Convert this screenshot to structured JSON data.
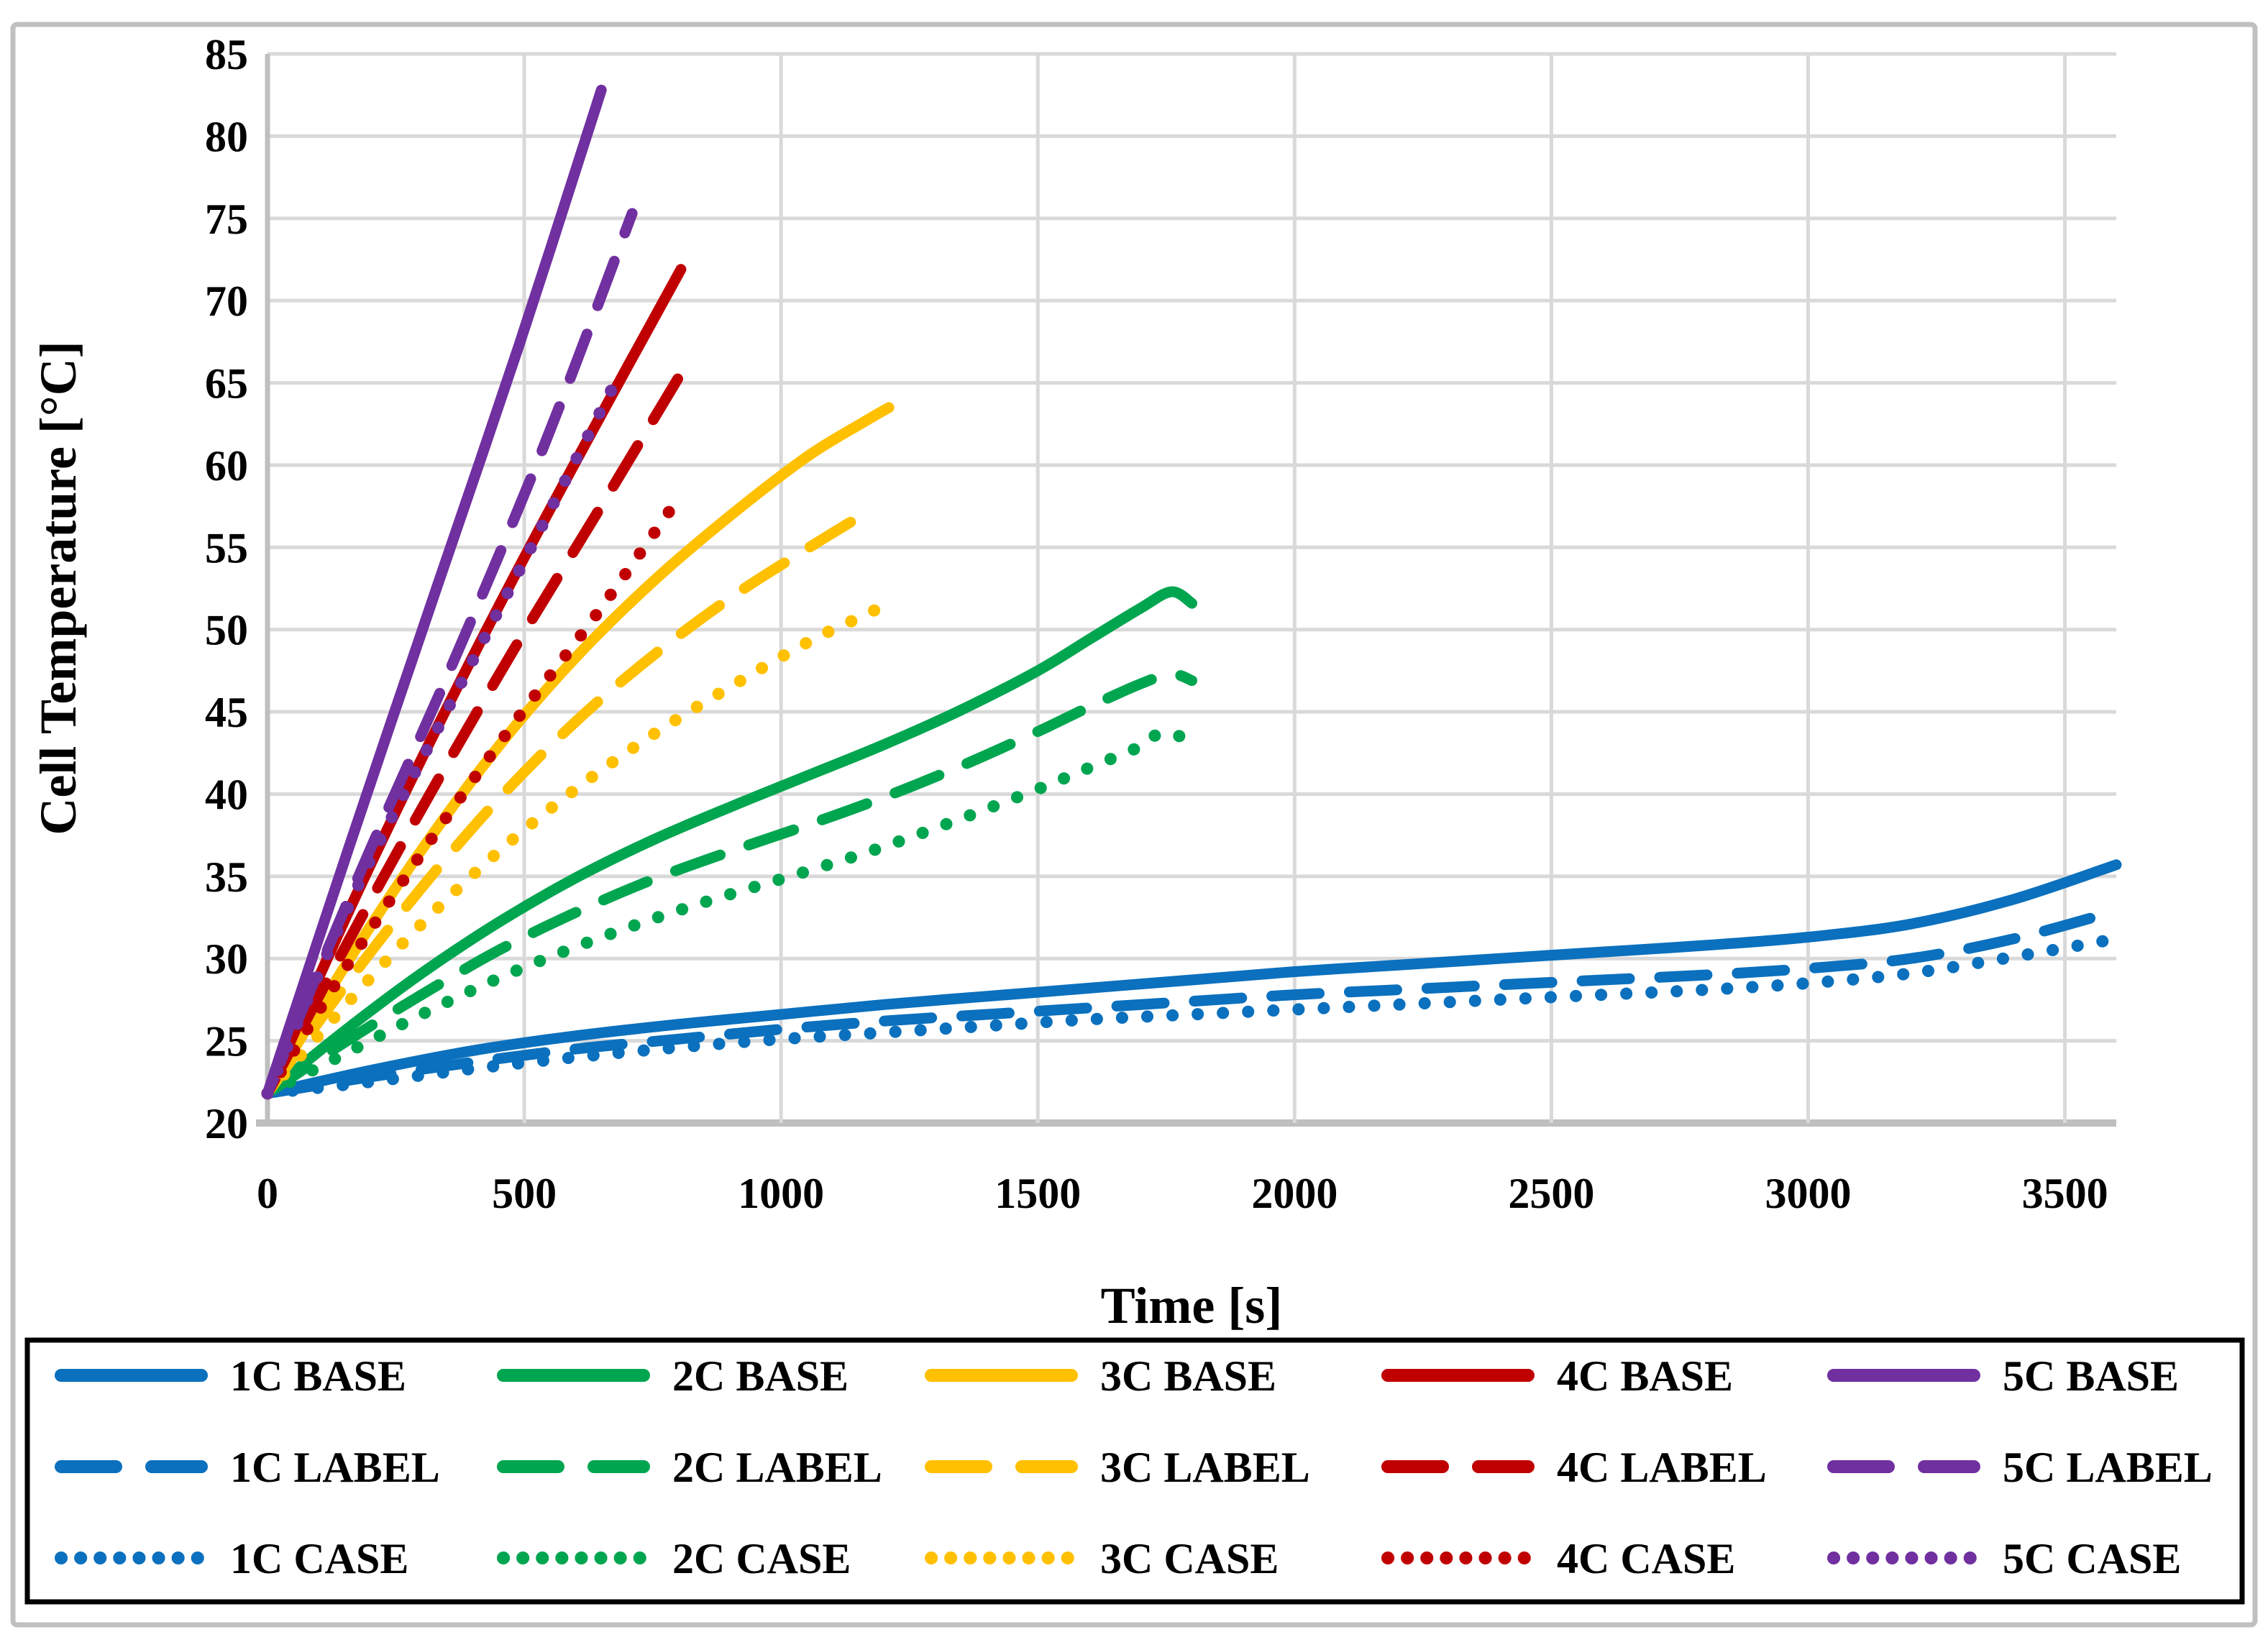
{
  "figure": {
    "background": "#FFFFFF",
    "border_color": "#C0C0C0",
    "legend_border_color": "#000000"
  },
  "chart_data": {
    "type": "line",
    "title": "",
    "xlabel": "Time [s]",
    "ylabel": "Cell Temperature [°C]",
    "xlim": [
      0,
      3600
    ],
    "ylim": [
      20,
      85
    ],
    "x_ticks": [
      0,
      500,
      1000,
      1500,
      2000,
      2500,
      3000,
      3500
    ],
    "y_ticks": [
      20,
      25,
      30,
      35,
      40,
      45,
      50,
      55,
      60,
      65,
      70,
      75,
      80,
      85
    ],
    "grid": true,
    "grid_color": "#D9D9D9",
    "axis_color": "#BFBFBF",
    "legend_position": "bottom",
    "colors": {
      "blue": "#0B70BD",
      "green": "#00A550",
      "yellow": "#FFC000",
      "red": "#C00000",
      "purple": "#7030A0"
    },
    "series": [
      {
        "name": "1C BASE",
        "color": "blue",
        "style": "solid",
        "points": [
          [
            0,
            21.8
          ],
          [
            200,
            23.2
          ],
          [
            400,
            24.4
          ],
          [
            600,
            25.3
          ],
          [
            800,
            26.0
          ],
          [
            1000,
            26.6
          ],
          [
            1200,
            27.2
          ],
          [
            1400,
            27.7
          ],
          [
            1600,
            28.2
          ],
          [
            1800,
            28.7
          ],
          [
            2000,
            29.2
          ],
          [
            2200,
            29.6
          ],
          [
            2400,
            30.0
          ],
          [
            2600,
            30.4
          ],
          [
            2800,
            30.8
          ],
          [
            3000,
            31.3
          ],
          [
            3200,
            32.1
          ],
          [
            3400,
            33.6
          ],
          [
            3600,
            35.7
          ]
        ]
      },
      {
        "name": "2C BASE",
        "color": "green",
        "style": "solid",
        "points": [
          [
            0,
            21.8
          ],
          [
            150,
            25.6
          ],
          [
            300,
            29.1
          ],
          [
            450,
            32.2
          ],
          [
            600,
            34.9
          ],
          [
            750,
            37.2
          ],
          [
            900,
            39.2
          ],
          [
            1050,
            41.1
          ],
          [
            1200,
            43.0
          ],
          [
            1350,
            45.1
          ],
          [
            1500,
            47.5
          ],
          [
            1600,
            49.4
          ],
          [
            1700,
            51.3
          ],
          [
            1760,
            52.3
          ],
          [
            1800,
            51.6
          ]
        ]
      },
      {
        "name": "3C BASE",
        "color": "yellow",
        "style": "solid",
        "points": [
          [
            0,
            21.8
          ],
          [
            150,
            29.5
          ],
          [
            300,
            36.6
          ],
          [
            450,
            42.9
          ],
          [
            600,
            48.3
          ],
          [
            750,
            52.9
          ],
          [
            900,
            56.9
          ],
          [
            1050,
            60.5
          ],
          [
            1160,
            62.6
          ],
          [
            1210,
            63.5
          ]
        ]
      },
      {
        "name": "4C BASE",
        "color": "red",
        "style": "solid",
        "points": [
          [
            0,
            21.8
          ],
          [
            160,
            33.0
          ],
          [
            320,
            43.4
          ],
          [
            480,
            53.2
          ],
          [
            640,
            62.5
          ],
          [
            805,
            71.9
          ]
        ]
      },
      {
        "name": "5C BASE",
        "color": "purple",
        "style": "solid",
        "points": [
          [
            0,
            21.8
          ],
          [
            160,
            36.9
          ],
          [
            330,
            52.6
          ],
          [
            490,
            67.3
          ],
          [
            650,
            82.8
          ]
        ]
      },
      {
        "name": "1C LABEL",
        "color": "blue",
        "style": "dashed",
        "points": [
          [
            0,
            21.8
          ],
          [
            200,
            22.8
          ],
          [
            400,
            23.7
          ],
          [
            600,
            24.5
          ],
          [
            800,
            25.1
          ],
          [
            1000,
            25.7
          ],
          [
            1200,
            26.2
          ],
          [
            1400,
            26.6
          ],
          [
            1600,
            27.0
          ],
          [
            1800,
            27.4
          ],
          [
            2000,
            27.8
          ],
          [
            2200,
            28.1
          ],
          [
            2400,
            28.4
          ],
          [
            2600,
            28.7
          ],
          [
            2800,
            29.0
          ],
          [
            3000,
            29.4
          ],
          [
            3200,
            30.0
          ],
          [
            3400,
            31.2
          ],
          [
            3600,
            32.9
          ]
        ]
      },
      {
        "name": "2C LABEL",
        "color": "green",
        "style": "dashed",
        "points": [
          [
            0,
            21.8
          ],
          [
            150,
            24.9
          ],
          [
            300,
            27.8
          ],
          [
            450,
            30.5
          ],
          [
            600,
            32.8
          ],
          [
            750,
            34.8
          ],
          [
            900,
            36.5
          ],
          [
            1050,
            38.1
          ],
          [
            1200,
            39.8
          ],
          [
            1350,
            41.7
          ],
          [
            1500,
            43.8
          ],
          [
            1600,
            45.3
          ],
          [
            1700,
            46.7
          ],
          [
            1760,
            47.3
          ],
          [
            1800,
            46.9
          ]
        ]
      },
      {
        "name": "3C LABEL",
        "color": "yellow",
        "style": "dashed",
        "points": [
          [
            0,
            21.8
          ],
          [
            150,
            28.3
          ],
          [
            300,
            34.3
          ],
          [
            450,
            39.7
          ],
          [
            600,
            44.4
          ],
          [
            750,
            48.4
          ],
          [
            900,
            51.9
          ],
          [
            1050,
            54.9
          ],
          [
            1160,
            57.0
          ]
        ]
      },
      {
        "name": "4C LABEL",
        "color": "red",
        "style": "dashed",
        "points": [
          [
            0,
            21.8
          ],
          [
            160,
            31.2
          ],
          [
            320,
            40.2
          ],
          [
            480,
            48.8
          ],
          [
            640,
            57.0
          ],
          [
            800,
            65.3
          ]
        ]
      },
      {
        "name": "5C LABEL",
        "color": "purple",
        "style": "dashed",
        "points": [
          [
            0,
            21.8
          ],
          [
            180,
            35.2
          ],
          [
            360,
            47.9
          ],
          [
            540,
            61.3
          ],
          [
            710,
            75.3
          ]
        ]
      },
      {
        "name": "1C CASE",
        "color": "blue",
        "style": "dotted",
        "points": [
          [
            0,
            21.8
          ],
          [
            200,
            22.5
          ],
          [
            400,
            23.3
          ],
          [
            600,
            24.0
          ],
          [
            800,
            24.6
          ],
          [
            1000,
            25.1
          ],
          [
            1200,
            25.5
          ],
          [
            1400,
            25.9
          ],
          [
            1600,
            26.3
          ],
          [
            1800,
            26.6
          ],
          [
            2000,
            26.9
          ],
          [
            2200,
            27.2
          ],
          [
            2400,
            27.5
          ],
          [
            2600,
            27.8
          ],
          [
            2800,
            28.1
          ],
          [
            3000,
            28.5
          ],
          [
            3200,
            29.1
          ],
          [
            3400,
            30.1
          ],
          [
            3600,
            31.2
          ]
        ]
      },
      {
        "name": "2C CASE",
        "color": "green",
        "style": "dotted",
        "points": [
          [
            0,
            21.8
          ],
          [
            150,
            24.2
          ],
          [
            300,
            26.6
          ],
          [
            450,
            28.8
          ],
          [
            600,
            30.7
          ],
          [
            750,
            32.4
          ],
          [
            900,
            33.9
          ],
          [
            1050,
            35.3
          ],
          [
            1200,
            36.8
          ],
          [
            1350,
            38.5
          ],
          [
            1500,
            40.3
          ],
          [
            1600,
            41.6
          ],
          [
            1700,
            42.9
          ],
          [
            1740,
            43.7
          ],
          [
            1800,
            43.3
          ]
        ]
      },
      {
        "name": "3C CASE",
        "color": "yellow",
        "style": "dotted",
        "points": [
          [
            0,
            21.8
          ],
          [
            150,
            27.1
          ],
          [
            300,
            32.1
          ],
          [
            450,
            36.5
          ],
          [
            600,
            40.3
          ],
          [
            750,
            43.6
          ],
          [
            900,
            46.5
          ],
          [
            1050,
            49.2
          ],
          [
            1150,
            50.7
          ],
          [
            1225,
            51.8
          ]
        ]
      },
      {
        "name": "4C CASE",
        "color": "red",
        "style": "dotted",
        "points": [
          [
            0,
            21.8
          ],
          [
            160,
            29.8
          ],
          [
            320,
            37.3
          ],
          [
            480,
            44.3
          ],
          [
            640,
            50.9
          ],
          [
            785,
            57.3
          ]
        ]
      },
      {
        "name": "5C CASE",
        "color": "purple",
        "style": "dotted",
        "points": [
          [
            0,
            21.8
          ],
          [
            170,
            34.0
          ],
          [
            340,
            44.5
          ],
          [
            510,
            54.8
          ],
          [
            680,
            65.2
          ]
        ]
      }
    ]
  },
  "legend": {
    "rows": [
      [
        "1C BASE",
        "2C BASE",
        "3C BASE",
        "4C BASE",
        "5C BASE"
      ],
      [
        "1C LABEL",
        "2C LABEL",
        "3C LABEL",
        "4C LABEL",
        "5C LABEL"
      ],
      [
        "1C CASE",
        "2C CASE",
        "3C CASE",
        "4C CASE",
        "5C CASE"
      ]
    ]
  }
}
